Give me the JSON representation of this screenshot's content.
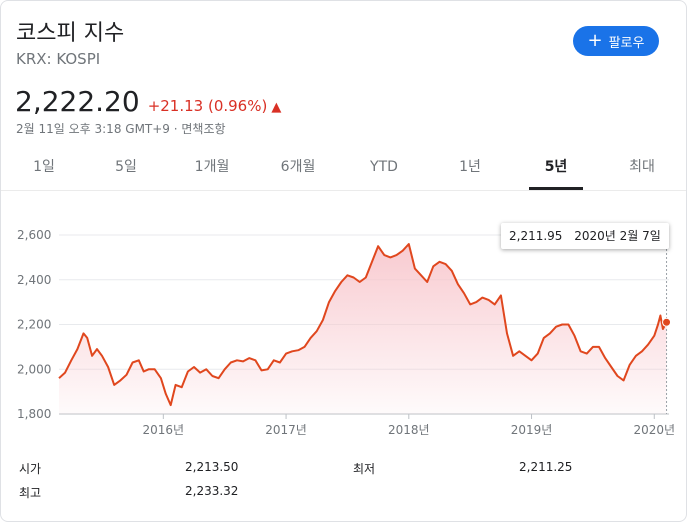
{
  "header": {
    "title": "코스피 지수",
    "ticker": "KRX: KOSPI",
    "follow_label": "팔로우",
    "price": "2,222.20",
    "change": "+21.13 (0.96%)",
    "timestamp": "2월 11일 오후 3:18 GMT+9 · 면책조항"
  },
  "tabs": [
    {
      "label": "1일"
    },
    {
      "label": "5일"
    },
    {
      "label": "1개월"
    },
    {
      "label": "6개월"
    },
    {
      "label": "YTD"
    },
    {
      "label": "1년"
    },
    {
      "label": "5년",
      "active": true
    },
    {
      "label": "최대"
    }
  ],
  "tooltip": {
    "value": "2,211.95",
    "date": "2020년 2월 7일"
  },
  "stats": {
    "open_label": "시가",
    "open_value": "2,213.50",
    "high_label": "최고",
    "high_value": "2,233.32",
    "low_label": "최저",
    "low_value": "2,211.25"
  },
  "colors": {
    "line": "#e0471e",
    "fill": "#f8c8ce",
    "accent": "#1a73e8",
    "negative": "#d93025"
  },
  "chart_data": {
    "type": "area",
    "title": "",
    "xlabel": "",
    "ylabel": "",
    "ylim": [
      1800,
      2600
    ],
    "yticks": [
      1800,
      2000,
      2200,
      2400,
      2600
    ],
    "ytick_labels": [
      "1,800",
      "2,000",
      "2,200",
      "2,400",
      "2,600"
    ],
    "xticks": [
      2016,
      2017,
      2018,
      2019,
      2020
    ],
    "xtick_labels": [
      "2016년",
      "2017년",
      "2018년",
      "2019년",
      "2020년"
    ],
    "xlim": [
      2015.15,
      2020.12
    ],
    "grid": true,
    "series": [
      {
        "x": [
          2015.15,
          2015.2,
          2015.25,
          2015.3,
          2015.35,
          2015.38,
          2015.42,
          2015.46,
          2015.5,
          2015.55,
          2015.6,
          2015.65,
          2015.7,
          2015.75,
          2015.8,
          2015.84,
          2015.88,
          2015.93,
          2015.98,
          2016.02,
          2016.06,
          2016.1,
          2016.15,
          2016.2,
          2016.25,
          2016.3,
          2016.35,
          2016.4,
          2016.45,
          2016.5,
          2016.55,
          2016.6,
          2016.65,
          2016.7,
          2016.75,
          2016.8,
          2016.85,
          2016.9,
          2016.95,
          2017.0,
          2017.05,
          2017.1,
          2017.15,
          2017.2,
          2017.25,
          2017.3,
          2017.35,
          2017.4,
          2017.45,
          2017.5,
          2017.55,
          2017.6,
          2017.65,
          2017.7,
          2017.75,
          2017.8,
          2017.85,
          2017.9,
          2017.95,
          2018.0,
          2018.05,
          2018.1,
          2018.15,
          2018.2,
          2018.25,
          2018.3,
          2018.35,
          2018.4,
          2018.45,
          2018.5,
          2018.55,
          2018.6,
          2018.65,
          2018.7,
          2018.75,
          2018.8,
          2018.85,
          2018.9,
          2018.95,
          2019.0,
          2019.05,
          2019.1,
          2019.15,
          2019.2,
          2019.25,
          2019.3,
          2019.35,
          2019.4,
          2019.45,
          2019.5,
          2019.55,
          2019.6,
          2019.65,
          2019.7,
          2019.75,
          2019.8,
          2019.85,
          2019.9,
          2019.95,
          2020.0,
          2020.03,
          2020.05,
          2020.07,
          2020.1
        ],
        "y": [
          1960,
          1985,
          2040,
          2090,
          2160,
          2140,
          2060,
          2090,
          2060,
          2010,
          1930,
          1950,
          1975,
          2030,
          2040,
          1990,
          2000,
          2000,
          1960,
          1890,
          1840,
          1930,
          1920,
          1990,
          2010,
          1985,
          2000,
          1970,
          1960,
          2000,
          2030,
          2040,
          2035,
          2050,
          2040,
          1995,
          2000,
          2040,
          2030,
          2070,
          2080,
          2085,
          2100,
          2140,
          2170,
          2220,
          2300,
          2350,
          2390,
          2420,
          2410,
          2390,
          2410,
          2480,
          2550,
          2510,
          2500,
          2510,
          2530,
          2560,
          2450,
          2420,
          2390,
          2460,
          2480,
          2470,
          2440,
          2380,
          2340,
          2290,
          2300,
          2320,
          2310,
          2290,
          2330,
          2160,
          2060,
          2080,
          2060,
          2040,
          2070,
          2140,
          2160,
          2190,
          2200,
          2200,
          2150,
          2080,
          2070,
          2100,
          2100,
          2050,
          2010,
          1970,
          1950,
          2020,
          2060,
          2080,
          2110,
          2150,
          2200,
          2240,
          2180,
          2210
        ]
      }
    ]
  }
}
